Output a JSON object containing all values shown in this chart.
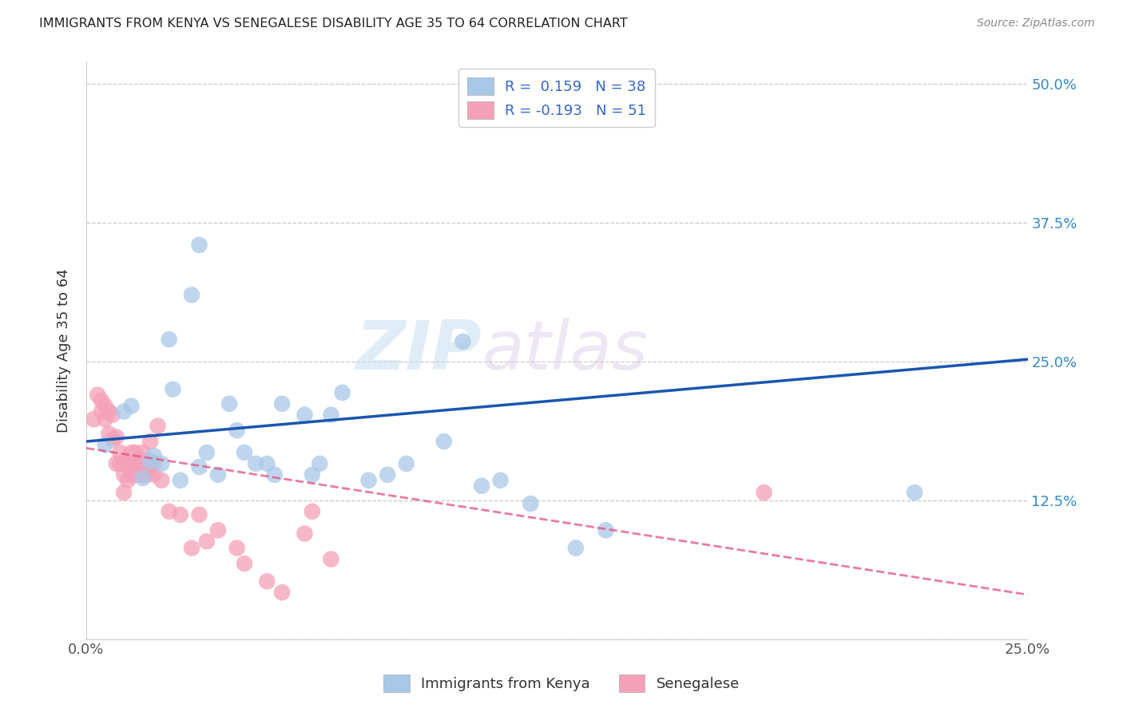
{
  "title": "IMMIGRANTS FROM KENYA VS SENEGALESE DISABILITY AGE 35 TO 64 CORRELATION CHART",
  "source": "Source: ZipAtlas.com",
  "ylabel": "Disability Age 35 to 64",
  "xlim": [
    0.0,
    0.25
  ],
  "ylim": [
    0.0,
    0.52
  ],
  "xticks": [
    0.0,
    0.05,
    0.1,
    0.15,
    0.2,
    0.25
  ],
  "xticklabels": [
    "0.0%",
    "",
    "",
    "",
    "",
    "25.0%"
  ],
  "yticks": [
    0.0,
    0.125,
    0.25,
    0.375,
    0.5
  ],
  "yticklabels_right": [
    "",
    "12.5%",
    "25.0%",
    "37.5%",
    "50.0%"
  ],
  "kenya_r": 0.159,
  "kenya_n": 38,
  "senegal_r": -0.193,
  "senegal_n": 51,
  "kenya_color": "#a8c8e8",
  "senegal_color": "#f4a0b8",
  "kenya_line_color": "#1a56b0",
  "senegal_line_color": "#e05080",
  "watermark_zip": "ZIP",
  "watermark_atlas": "atlas",
  "kenya_line_x0": 0.0,
  "kenya_line_y0": 0.178,
  "kenya_line_x1": 0.25,
  "kenya_line_y1": 0.252,
  "senegal_line_x0": 0.0,
  "senegal_line_y0": 0.172,
  "senegal_line_x1": 0.25,
  "senegal_line_y1": 0.04,
  "kenya_points_x": [
    0.005,
    0.01,
    0.012,
    0.015,
    0.017,
    0.018,
    0.02,
    0.022,
    0.023,
    0.025,
    0.028,
    0.03,
    0.03,
    0.032,
    0.035,
    0.038,
    0.04,
    0.042,
    0.045,
    0.048,
    0.05,
    0.052,
    0.058,
    0.06,
    0.062,
    0.065,
    0.068,
    0.075,
    0.08,
    0.085,
    0.095,
    0.1,
    0.105,
    0.11,
    0.118,
    0.13,
    0.138,
    0.22
  ],
  "kenya_points_y": [
    0.175,
    0.205,
    0.21,
    0.145,
    0.16,
    0.165,
    0.158,
    0.27,
    0.225,
    0.143,
    0.31,
    0.355,
    0.155,
    0.168,
    0.148,
    0.212,
    0.188,
    0.168,
    0.158,
    0.158,
    0.148,
    0.212,
    0.202,
    0.148,
    0.158,
    0.202,
    0.222,
    0.143,
    0.148,
    0.158,
    0.178,
    0.268,
    0.138,
    0.143,
    0.122,
    0.082,
    0.098,
    0.132
  ],
  "senegal_points_x": [
    0.002,
    0.003,
    0.004,
    0.004,
    0.005,
    0.005,
    0.006,
    0.006,
    0.007,
    0.007,
    0.008,
    0.008,
    0.009,
    0.009,
    0.01,
    0.01,
    0.01,
    0.011,
    0.011,
    0.012,
    0.012,
    0.012,
    0.013,
    0.013,
    0.013,
    0.014,
    0.014,
    0.015,
    0.015,
    0.016,
    0.016,
    0.017,
    0.017,
    0.018,
    0.018,
    0.019,
    0.02,
    0.022,
    0.025,
    0.028,
    0.03,
    0.032,
    0.035,
    0.04,
    0.042,
    0.048,
    0.052,
    0.058,
    0.06,
    0.065,
    0.18
  ],
  "senegal_points_y": [
    0.198,
    0.22,
    0.215,
    0.205,
    0.21,
    0.198,
    0.205,
    0.185,
    0.202,
    0.18,
    0.182,
    0.158,
    0.158,
    0.168,
    0.158,
    0.148,
    0.132,
    0.158,
    0.143,
    0.148,
    0.168,
    0.158,
    0.168,
    0.148,
    0.158,
    0.148,
    0.162,
    0.148,
    0.168,
    0.158,
    0.148,
    0.152,
    0.178,
    0.148,
    0.158,
    0.192,
    0.143,
    0.115,
    0.112,
    0.082,
    0.112,
    0.088,
    0.098,
    0.082,
    0.068,
    0.052,
    0.042,
    0.095,
    0.115,
    0.072,
    0.132
  ]
}
